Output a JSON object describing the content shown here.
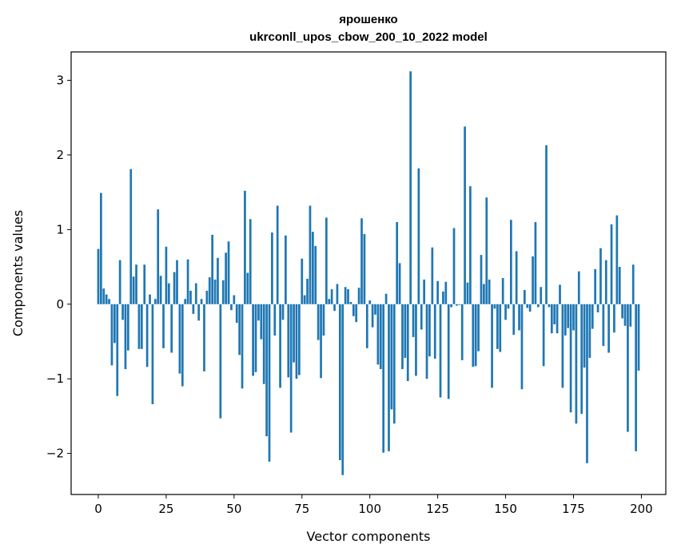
{
  "chart_data": {
    "type": "bar",
    "title": "ярошенко",
    "subtitle": "ukrconll_upos_cbow_200_10_2022 model",
    "xlabel": "Vector components",
    "ylabel": "Components values",
    "xlim": [
      -10,
      209
    ],
    "ylim": [
      -2.55,
      3.38
    ],
    "xticks": [
      0,
      25,
      50,
      75,
      100,
      125,
      150,
      175,
      200
    ],
    "yticks": [
      -2,
      -1,
      0,
      1,
      2,
      3
    ],
    "ytick_labels": [
      "−2",
      "−1",
      "0",
      "1",
      "2",
      "3"
    ],
    "bar_color": "#1f77b4",
    "grid": false,
    "x": [
      0,
      1,
      2,
      3,
      4,
      5,
      6,
      7,
      8,
      9,
      10,
      11,
      12,
      13,
      14,
      15,
      16,
      17,
      18,
      19,
      20,
      21,
      22,
      23,
      24,
      25,
      26,
      27,
      28,
      29,
      30,
      31,
      32,
      33,
      34,
      35,
      36,
      37,
      38,
      39,
      40,
      41,
      42,
      43,
      44,
      45,
      46,
      47,
      48,
      49,
      50,
      51,
      52,
      53,
      54,
      55,
      56,
      57,
      58,
      59,
      60,
      61,
      62,
      63,
      64,
      65,
      66,
      67,
      68,
      69,
      70,
      71,
      72,
      73,
      74,
      75,
      76,
      77,
      78,
      79,
      80,
      81,
      82,
      83,
      84,
      85,
      86,
      87,
      88,
      89,
      90,
      91,
      92,
      93,
      94,
      95,
      96,
      97,
      98,
      99,
      100,
      101,
      102,
      103,
      104,
      105,
      106,
      107,
      108,
      109,
      110,
      111,
      112,
      113,
      114,
      115,
      116,
      117,
      118,
      119,
      120,
      121,
      122,
      123,
      124,
      125,
      126,
      127,
      128,
      129,
      130,
      131,
      132,
      133,
      134,
      135,
      136,
      137,
      138,
      139,
      140,
      141,
      142,
      143,
      144,
      145,
      146,
      147,
      148,
      149,
      150,
      151,
      152,
      153,
      154,
      155,
      156,
      157,
      158,
      159,
      160,
      161,
      162,
      163,
      164,
      165,
      166,
      167,
      168,
      169,
      170,
      171,
      172,
      173,
      174,
      175,
      176,
      177,
      178,
      179,
      180,
      181,
      182,
      183,
      184,
      185,
      186,
      187,
      188,
      189,
      190,
      191,
      192,
      193,
      194,
      195,
      196,
      197,
      198,
      199
    ],
    "values": [
      0.74,
      1.49,
      0.21,
      0.13,
      0.07,
      -0.82,
      -0.52,
      -1.23,
      0.59,
      -0.21,
      -0.87,
      -0.62,
      1.81,
      0.37,
      0.53,
      -0.6,
      -0.6,
      0.53,
      -0.84,
      0.13,
      -1.34,
      0.07,
      1.27,
      0.38,
      -0.59,
      0.77,
      0.28,
      -0.65,
      0.43,
      0.59,
      -0.93,
      -1.1,
      0.07,
      0.6,
      0.18,
      -0.13,
      0.28,
      -0.22,
      0.07,
      -0.9,
      0.18,
      0.36,
      0.93,
      0.33,
      0.62,
      -1.53,
      0.32,
      0.69,
      0.84,
      -0.08,
      0.12,
      -0.25,
      -0.68,
      -1.13,
      1.52,
      0.42,
      1.14,
      -0.96,
      -0.91,
      -0.22,
      -0.47,
      -1.07,
      -1.77,
      -2.11,
      0.96,
      -0.42,
      1.32,
      -1.12,
      -0.21,
      0.92,
      -0.98,
      -1.72,
      -0.78,
      -1.0,
      -0.95,
      0.61,
      0.12,
      0.34,
      1.32,
      0.97,
      0.78,
      -0.48,
      -0.99,
      -0.42,
      1.16,
      0.07,
      0.2,
      -0.09,
      0.27,
      -2.09,
      -2.29,
      0.23,
      0.2,
      0.03,
      -0.16,
      -0.24,
      0.22,
      1.15,
      0.94,
      -0.59,
      0.05,
      -0.31,
      -0.14,
      -0.81,
      -0.87,
      -1.99,
      0.14,
      -1.97,
      -1.41,
      -1.6,
      1.1,
      0.55,
      -0.87,
      -0.72,
      -1.03,
      3.12,
      -0.44,
      -0.96,
      1.82,
      -0.34,
      0.33,
      -1.0,
      -0.7,
      0.76,
      -0.73,
      0.31,
      -1.25,
      0.17,
      0.3,
      -1.27,
      -0.04,
      1.02,
      -0.02,
      -0.01,
      -0.75,
      2.38,
      0.29,
      1.58,
      -0.84,
      -0.83,
      -0.63,
      0.66,
      0.27,
      1.43,
      0.33,
      -1.12,
      -0.06,
      -0.6,
      -0.64,
      0.35,
      -0.21,
      -0.06,
      1.13,
      -0.41,
      0.71,
      -0.35,
      -1.14,
      0.19,
      -0.05,
      -0.1,
      0.64,
      1.1,
      -0.04,
      0.23,
      -0.83,
      2.13,
      -0.04,
      -0.39,
      -0.27,
      -0.39,
      0.26,
      -1.12,
      -0.42,
      -0.32,
      -1.45,
      -0.35,
      -1.6,
      0.44,
      -1.47,
      -0.85,
      -2.13,
      -0.72,
      -0.33,
      0.47,
      -0.11,
      0.75,
      -0.56,
      0.59,
      -0.65,
      1.07,
      -0.38,
      1.19,
      0.5,
      -0.19,
      -0.29,
      -1.71,
      -0.3,
      0.53,
      -1.97,
      -0.89
    ]
  }
}
